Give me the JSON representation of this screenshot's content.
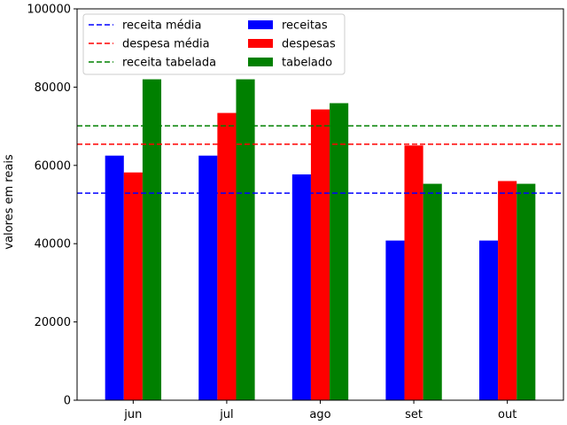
{
  "chart_data": {
    "type": "bar",
    "categories": [
      "jun",
      "jul",
      "ago",
      "set",
      "out"
    ],
    "series": [
      {
        "name": "receitas",
        "color": "#0000ff",
        "values": [
          62500,
          62500,
          57700,
          40800,
          40800
        ]
      },
      {
        "name": "despesas",
        "color": "#ff0000",
        "values": [
          58200,
          73400,
          74300,
          65100,
          56000
        ]
      },
      {
        "name": "tabelado",
        "color": "#008000",
        "values": [
          82000,
          82000,
          75900,
          55300,
          55300
        ]
      }
    ],
    "reference_lines": [
      {
        "name": "receita média",
        "color": "#0000ff",
        "value": 52900
      },
      {
        "name": "despesa média",
        "color": "#ff0000",
        "value": 65400
      },
      {
        "name": "receita tabelada",
        "color": "#008000",
        "value": 70100
      }
    ],
    "yticks": [
      0,
      20000,
      40000,
      60000,
      80000,
      100000
    ],
    "ytick_labels": [
      "0",
      "20000",
      "40000",
      "60000",
      "80000",
      "100000"
    ],
    "ylabel": "valores em reais",
    "xlabel": "",
    "title": "",
    "ylim": [
      0,
      100000
    ],
    "grid": false,
    "legend_position": "top-left",
    "legend_columns": 2
  }
}
